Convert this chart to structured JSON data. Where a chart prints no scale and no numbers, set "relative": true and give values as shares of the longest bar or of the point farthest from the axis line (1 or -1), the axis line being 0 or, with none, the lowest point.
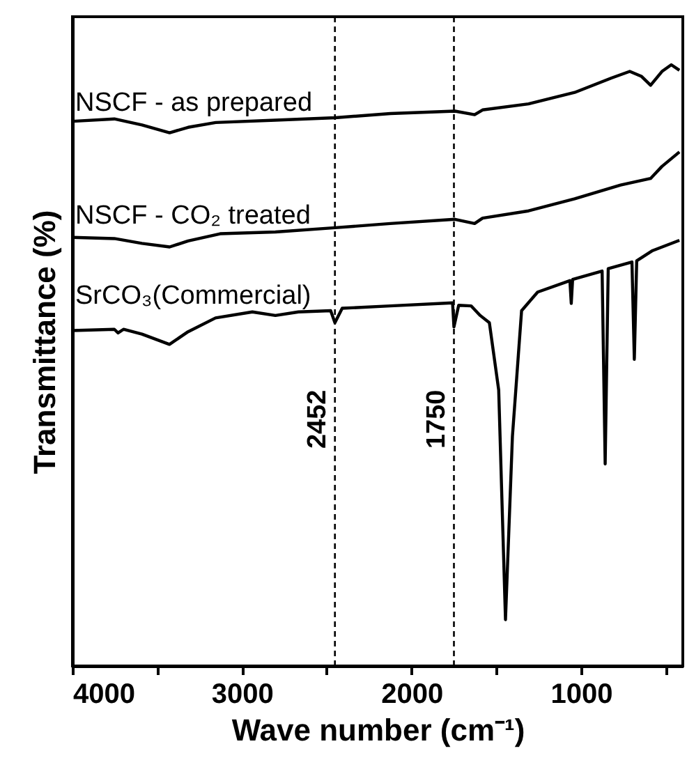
{
  "chart_data": {
    "type": "line",
    "relative": true,
    "xlabel": "Wave number (cm⁻¹)",
    "ylabel": "Transmittance (%)",
    "xlim": [
      4000,
      400
    ],
    "xticks": [
      4000,
      {
        "value": 3500,
        "label": null
      },
      3000,
      {
        "value": 2500,
        "label": null
      },
      2000,
      {
        "value": 1500,
        "label": null
      },
      1000,
      {
        "value": 500,
        "label": null
      }
    ],
    "grid": false,
    "legend": false,
    "tick_labels": "x",
    "ref_lines": [
      {
        "axis": "x",
        "value": 2452,
        "label": "2452",
        "line_style": "dashed",
        "color": "#000000"
      },
      {
        "axis": "x",
        "value": 1750,
        "label": "1750",
        "line_style": "dashed",
        "color": "#000000"
      }
    ],
    "series": [
      {
        "name": "NSCF - as prepared",
        "color": "#000000",
        "x": [
          4000,
          3753,
          3590,
          3427,
          3318,
          3155,
          2803,
          2450,
          2125,
          1744,
          1628,
          1581,
          1310,
          1038,
          821,
          713,
          645,
          590,
          523,
          468,
          420
        ],
        "values": [
          0.906,
          0.91,
          0.9,
          0.887,
          0.896,
          0.904,
          0.908,
          0.912,
          0.919,
          0.923,
          0.917,
          0.925,
          0.935,
          0.954,
          0.978,
          0.989,
          0.981,
          0.966,
          0.989,
          1,
          0.991
        ]
      },
      {
        "name": "NSCF - CO₂ treated",
        "color": "#000000",
        "x": [
          4000,
          3753,
          3590,
          3427,
          3318,
          3129,
          2803,
          2450,
          2125,
          1744,
          1628,
          1581,
          1310,
          1038,
          767,
          590,
          523,
          420
        ],
        "values": [
          0.713,
          0.711,
          0.703,
          0.697,
          0.707,
          0.719,
          0.722,
          0.729,
          0.736,
          0.743,
          0.736,
          0.745,
          0.757,
          0.777,
          0.8,
          0.811,
          0.831,
          0.855
        ]
      },
      {
        "name": "SrCO₃(Commercial)",
        "color": "#000000",
        "x": [
          4000,
          3753,
          3731,
          3699,
          3590,
          3428,
          3318,
          3156,
          2939,
          2803,
          2667,
          2477,
          2452,
          2409,
          2125,
          1758,
          1750,
          1722,
          1649,
          1595,
          1541,
          1486,
          1446,
          1405,
          1351,
          1256,
          1066,
          1058,
          1050,
          876,
          858,
          840,
          700,
          686,
          672,
          578,
          420
        ],
        "values": [
          0.558,
          0.56,
          0.554,
          0.56,
          0.552,
          0.535,
          0.556,
          0.579,
          0.589,
          0.583,
          0.589,
          0.591,
          0.571,
          0.595,
          0.599,
          0.604,
          0.564,
          0.6,
          0.599,
          0.583,
          0.571,
          0.459,
          0.077,
          0.382,
          0.591,
          0.622,
          0.641,
          0.603,
          0.643,
          0.657,
          0.336,
          0.661,
          0.672,
          0.51,
          0.674,
          0.691,
          0.708
        ]
      }
    ]
  }
}
